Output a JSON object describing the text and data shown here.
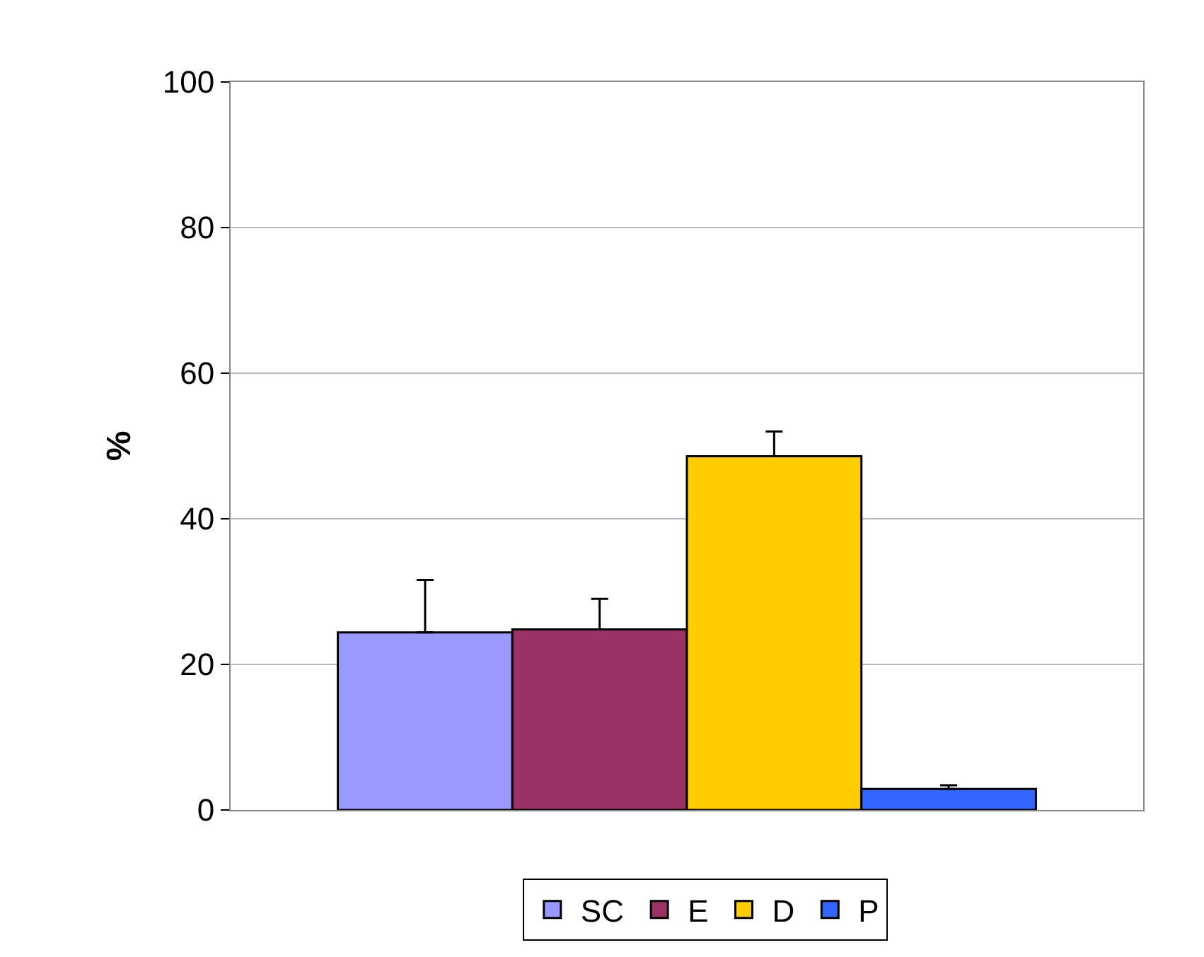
{
  "chart_data": {
    "type": "bar",
    "ylabel": "%",
    "categories": [
      null
    ],
    "series": [
      {
        "name": "SC",
        "color": "#9999ff",
        "values": [
          24.4
        ],
        "errors": [
          [
            24.4,
            31.6
          ]
        ]
      },
      {
        "name": "E",
        "color": "#993366",
        "values": [
          24.8
        ],
        "errors": [
          [
            24.8,
            29.0
          ]
        ]
      },
      {
        "name": "D",
        "color": "#ffcc00",
        "values": [
          48.6
        ],
        "errors": [
          [
            48.6,
            52.0
          ]
        ]
      },
      {
        "name": "P",
        "color": "#3366ff",
        "values": [
          2.9
        ],
        "errors": [
          [
            2.9,
            3.4
          ]
        ]
      }
    ],
    "ylim": [
      0,
      100
    ],
    "yticks": [
      0,
      20,
      40,
      60,
      80,
      100
    ],
    "grid": "y",
    "legend": "bottom"
  }
}
